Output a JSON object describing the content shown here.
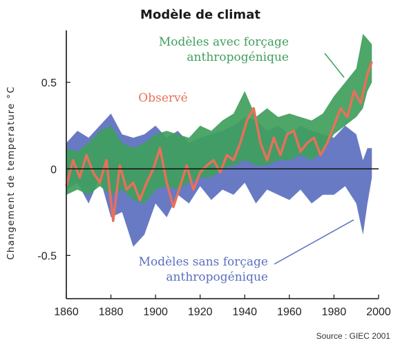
{
  "chart_data": {
    "type": "area",
    "title": "Modèle de climat",
    "ylabel": "Changement de temperature °C",
    "xlabel": "",
    "xlim": [
      1860,
      2000
    ],
    "ylim": [
      -0.75,
      0.8
    ],
    "x_ticks": [
      "1860",
      "1880",
      "1900",
      "1920",
      "1940",
      "1960",
      "1980",
      "2000"
    ],
    "y_ticks": [
      "0.5",
      "0",
      "-0.5"
    ],
    "grid": false,
    "zero_line": true,
    "series": [
      {
        "name": "Modèles sans forçage anthropogénique",
        "type": "band",
        "color": "#5b6fbf",
        "x": [
          1860,
          1865,
          1870,
          1875,
          1880,
          1885,
          1890,
          1895,
          1900,
          1905,
          1910,
          1915,
          1920,
          1925,
          1930,
          1935,
          1940,
          1945,
          1950,
          1955,
          1960,
          1965,
          1970,
          1975,
          1980,
          1985,
          1990,
          1993,
          1995,
          1997
        ],
        "lower": [
          -0.12,
          -0.08,
          -0.2,
          -0.05,
          -0.28,
          -0.25,
          -0.45,
          -0.38,
          -0.2,
          -0.28,
          -0.15,
          -0.2,
          -0.1,
          -0.18,
          -0.12,
          -0.15,
          -0.08,
          -0.2,
          -0.12,
          -0.15,
          -0.18,
          -0.12,
          -0.2,
          -0.15,
          -0.15,
          -0.1,
          -0.2,
          -0.38,
          -0.2,
          -0.05
        ],
        "upper": [
          0.15,
          0.22,
          0.18,
          0.25,
          0.32,
          0.2,
          0.18,
          0.2,
          0.25,
          0.18,
          0.22,
          0.15,
          0.18,
          0.2,
          0.22,
          0.25,
          0.3,
          0.28,
          0.22,
          0.25,
          0.2,
          0.25,
          0.22,
          0.2,
          0.18,
          0.25,
          0.2,
          0.05,
          0.12,
          0.12
        ]
      },
      {
        "name": "Modèles avec forçage anthropogénique",
        "type": "band",
        "color": "#3f9e5c",
        "x": [
          1860,
          1865,
          1870,
          1875,
          1880,
          1885,
          1890,
          1895,
          1900,
          1905,
          1910,
          1915,
          1920,
          1925,
          1930,
          1935,
          1940,
          1945,
          1950,
          1955,
          1960,
          1965,
          1970,
          1975,
          1980,
          1985,
          1990,
          1993,
          1995,
          1997
        ],
        "lower": [
          -0.15,
          -0.12,
          -0.15,
          -0.1,
          -0.15,
          -0.12,
          -0.18,
          -0.2,
          -0.12,
          -0.1,
          -0.12,
          -0.08,
          -0.05,
          -0.05,
          0.0,
          0.02,
          0.05,
          0.02,
          0.02,
          0.05,
          0.05,
          0.08,
          0.05,
          0.1,
          0.2,
          0.25,
          0.3,
          0.35,
          0.45,
          0.5
        ],
        "upper": [
          0.12,
          0.1,
          0.15,
          0.22,
          0.25,
          0.15,
          0.12,
          0.15,
          0.2,
          0.22,
          0.2,
          0.18,
          0.25,
          0.22,
          0.28,
          0.32,
          0.45,
          0.3,
          0.35,
          0.3,
          0.32,
          0.3,
          0.28,
          0.32,
          0.42,
          0.5,
          0.58,
          0.78,
          0.75,
          0.72
        ]
      },
      {
        "name": "Observé",
        "type": "line",
        "color": "#e8705a",
        "x": [
          1860,
          1863,
          1866,
          1869,
          1872,
          1875,
          1878,
          1881,
          1884,
          1887,
          1890,
          1893,
          1896,
          1899,
          1902,
          1905,
          1908,
          1911,
          1914,
          1917,
          1920,
          1923,
          1926,
          1929,
          1932,
          1935,
          1938,
          1941,
          1944,
          1947,
          1950,
          1953,
          1956,
          1959,
          1962,
          1965,
          1968,
          1971,
          1974,
          1977,
          1980,
          1983,
          1986,
          1989,
          1992,
          1995,
          1997
        ],
        "y": [
          -0.1,
          0.05,
          -0.05,
          0.08,
          -0.02,
          -0.08,
          0.05,
          -0.3,
          0.02,
          -0.12,
          -0.08,
          -0.18,
          -0.08,
          0.0,
          0.12,
          -0.08,
          -0.22,
          -0.1,
          0.02,
          -0.12,
          -0.02,
          0.02,
          0.05,
          -0.02,
          0.08,
          0.05,
          0.15,
          0.28,
          0.35,
          0.15,
          0.05,
          0.18,
          0.08,
          0.2,
          0.22,
          0.1,
          0.15,
          0.18,
          0.08,
          0.15,
          0.25,
          0.35,
          0.3,
          0.45,
          0.38,
          0.55,
          0.62
        ]
      }
    ],
    "annotations": [
      {
        "key": "observe",
        "lines": [
          "Observé"
        ],
        "color": "#e8705a"
      },
      {
        "key": "avec",
        "lines": [
          "Modèles avec forçage",
          "anthropogénique"
        ],
        "color": "#3f9e5c"
      },
      {
        "key": "sans",
        "lines": [
          "Modèles sans forçage",
          "anthropogénique"
        ],
        "color": "#5b6fbf"
      }
    ],
    "source": "Source : GIEC 2001"
  }
}
